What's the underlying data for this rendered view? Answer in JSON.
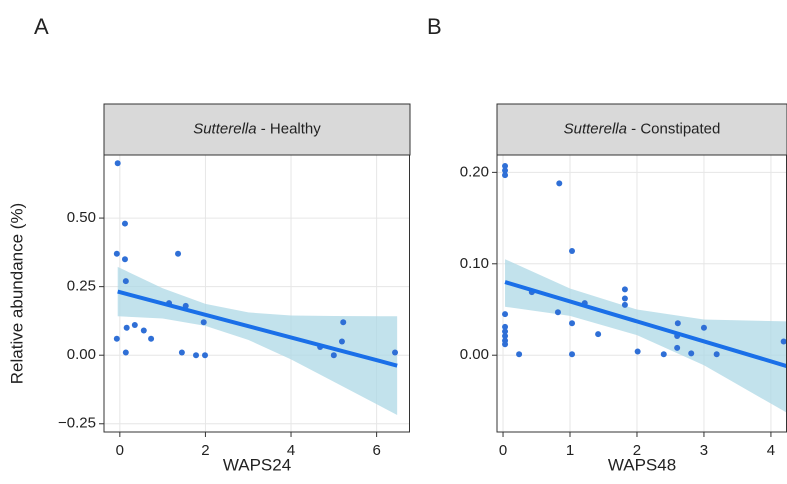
{
  "chart_data": [
    {
      "type": "scatter",
      "panel_label": "A",
      "strip": {
        "genus": "Sutterella",
        "label": " - Healthy"
      },
      "xlabel": "WAPS24",
      "ylabel": "Relative abundance (%)",
      "x": [
        -0.05,
        -0.07,
        0.12,
        0.12,
        0.14,
        -0.07,
        0.14,
        0.16,
        0.35,
        0.56,
        0.73,
        1.15,
        1.36,
        1.45,
        1.54,
        1.78,
        1.99,
        1.96,
        4.68,
        5.0,
        5.19,
        5.22,
        6.43
      ],
      "values": [
        0.7,
        0.37,
        0.48,
        0.35,
        0.27,
        0.06,
        0.01,
        0.1,
        0.11,
        0.09,
        0.06,
        0.19,
        0.37,
        0.01,
        0.18,
        0.0,
        0.0,
        0.12,
        0.03,
        0.0,
        0.05,
        0.12,
        0.01
      ],
      "color": "#2f6fd6",
      "fit": {
        "x": [
          -0.05,
          6.48
        ],
        "y": [
          0.232,
          -0.038
        ],
        "color": "#1a6fe8"
      },
      "band": {
        "x": [
          -0.05,
          1,
          2,
          3,
          4,
          5,
          6.48
        ],
        "lower": [
          0.142,
          0.134,
          0.107,
          0.056,
          -0.015,
          -0.097,
          -0.218
        ],
        "upper": [
          0.322,
          0.244,
          0.187,
          0.156,
          0.145,
          0.143,
          0.142
        ],
        "color": "#add8e6"
      },
      "xlim": [
        -0.37,
        6.78
      ],
      "xticks": [
        0,
        2,
        4,
        6
      ],
      "ylim": [
        -0.28,
        0.73
      ],
      "yticks": [
        {
          "value": -0.25,
          "label": "−0.25"
        },
        {
          "value": 0,
          "label": "0.00"
        },
        0.25,
        {
          "value": 0.5,
          "label": "0.50"
        }
      ],
      "grid": true
    },
    {
      "type": "scatter",
      "panel_label": "B",
      "strip": {
        "genus": "Sutterella",
        "label": " - Constipated"
      },
      "xlabel": "WAPS48",
      "x": [
        0.03,
        0.03,
        0.03,
        0.03,
        0.03,
        0.03,
        0.03,
        0.03,
        0.03,
        0.24,
        0.43,
        0.84,
        1.03,
        1.03,
        1.03,
        1.22,
        0.82,
        1.42,
        1.82,
        1.82,
        1.82,
        2.01,
        2.4,
        2.61,
        2.6,
        2.6,
        2.81,
        3.0,
        3.19,
        4.19
      ],
      "values": [
        0.207,
        0.202,
        0.197,
        0.045,
        0.031,
        0.026,
        0.021,
        0.016,
        0.012,
        0.001,
        0.069,
        0.188,
        0.114,
        0.035,
        0.001,
        0.057,
        0.047,
        0.023,
        0.072,
        0.062,
        0.055,
        0.004,
        0.001,
        0.035,
        0.021,
        0.008,
        0.002,
        0.03,
        0.001,
        0.015
      ],
      "color": "#2f6fd6",
      "fit": {
        "x": [
          0.03,
          4.24
        ],
        "y": [
          0.08,
          -0.012
        ],
        "color": "#1a6fe8"
      },
      "band": {
        "x": [
          0.03,
          1,
          2,
          3,
          4.24
        ],
        "lower": [
          0.053,
          0.043,
          0.022,
          -0.011,
          -0.063
        ],
        "upper": [
          0.105,
          0.073,
          0.05,
          0.039,
          0.037
        ],
        "color": "#add8e6"
      },
      "xlim": [
        -0.09,
        4.24
      ],
      "xticks": [
        0,
        1,
        2,
        3,
        4
      ],
      "ylim": [
        -0.084,
        0.219
      ],
      "yticks": [
        {
          "value": 0,
          "label": "0.00"
        },
        {
          "value": 0.1,
          "label": "0.10"
        },
        {
          "value": 0.2,
          "label": "0.20"
        }
      ],
      "grid": true
    }
  ]
}
